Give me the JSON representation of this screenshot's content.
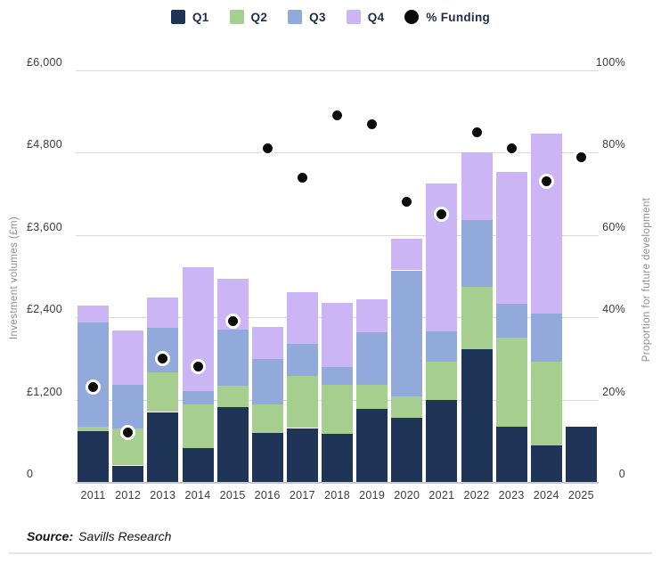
{
  "legend": {
    "items": [
      {
        "label": "Q1",
        "swatch": "square",
        "color": "#1F3557"
      },
      {
        "label": "Q2",
        "swatch": "square",
        "color": "#A6CE8F"
      },
      {
        "label": "Q3",
        "swatch": "square",
        "color": "#92AADB"
      },
      {
        "label": "Q4",
        "swatch": "square",
        "color": "#CBB5F5"
      },
      {
        "label": "% Funding",
        "swatch": "circle",
        "color": "#0B0B0B"
      }
    ]
  },
  "chart_data": {
    "type": "bar",
    "stacked": true,
    "grid": true,
    "legend_position": "top",
    "categories": [
      "2011",
      "2012",
      "2013",
      "2014",
      "2015",
      "2016",
      "2017",
      "2018",
      "2019",
      "2020",
      "2021",
      "2022",
      "2023",
      "2024",
      "2025"
    ],
    "series": [
      {
        "name": "Q1",
        "color": "#1F3557",
        "values": [
          740,
          240,
          1020,
          490,
          1090,
          715,
          785,
          700,
          1060,
          930,
          1200,
          1930,
          810,
          530,
          800
        ]
      },
      {
        "name": "Q2",
        "color": "#A6CE8F",
        "values": [
          60,
          540,
          575,
          640,
          310,
          410,
          755,
          710,
          360,
          315,
          550,
          910,
          1290,
          1220,
          0
        ]
      },
      {
        "name": "Q3",
        "color": "#92AADB",
        "values": [
          1530,
          640,
          650,
          190,
          820,
          665,
          475,
          270,
          765,
          1840,
          440,
          975,
          500,
          700,
          0
        ]
      },
      {
        "name": "Q4",
        "color": "#CBB5F5",
        "values": [
          240,
          790,
          445,
          1810,
          740,
          465,
          750,
          930,
          480,
          455,
          2165,
          985,
          1920,
          2625,
          0
        ]
      }
    ],
    "scatter": {
      "name": "% Funding",
      "color": "#0B0B0B",
      "values": [
        23,
        12,
        30,
        28,
        39,
        81,
        74,
        89,
        87,
        68,
        65,
        85,
        81,
        73,
        79
      ]
    },
    "left_axis": {
      "title": "Investment volumes (£m)",
      "ticks": [
        "£6,000",
        "£4,800",
        "£3,600",
        "£2,400",
        "£1,200",
        "0"
      ],
      "max": 6000,
      "min": 0
    },
    "right_axis": {
      "title": "Proportion for future development",
      "ticks": [
        "100%",
        "80%",
        "60%",
        "40%",
        "20%",
        "0"
      ],
      "max": 100,
      "min": 0
    }
  },
  "source": {
    "prefix": "Source:",
    "text": "Savills Research"
  }
}
